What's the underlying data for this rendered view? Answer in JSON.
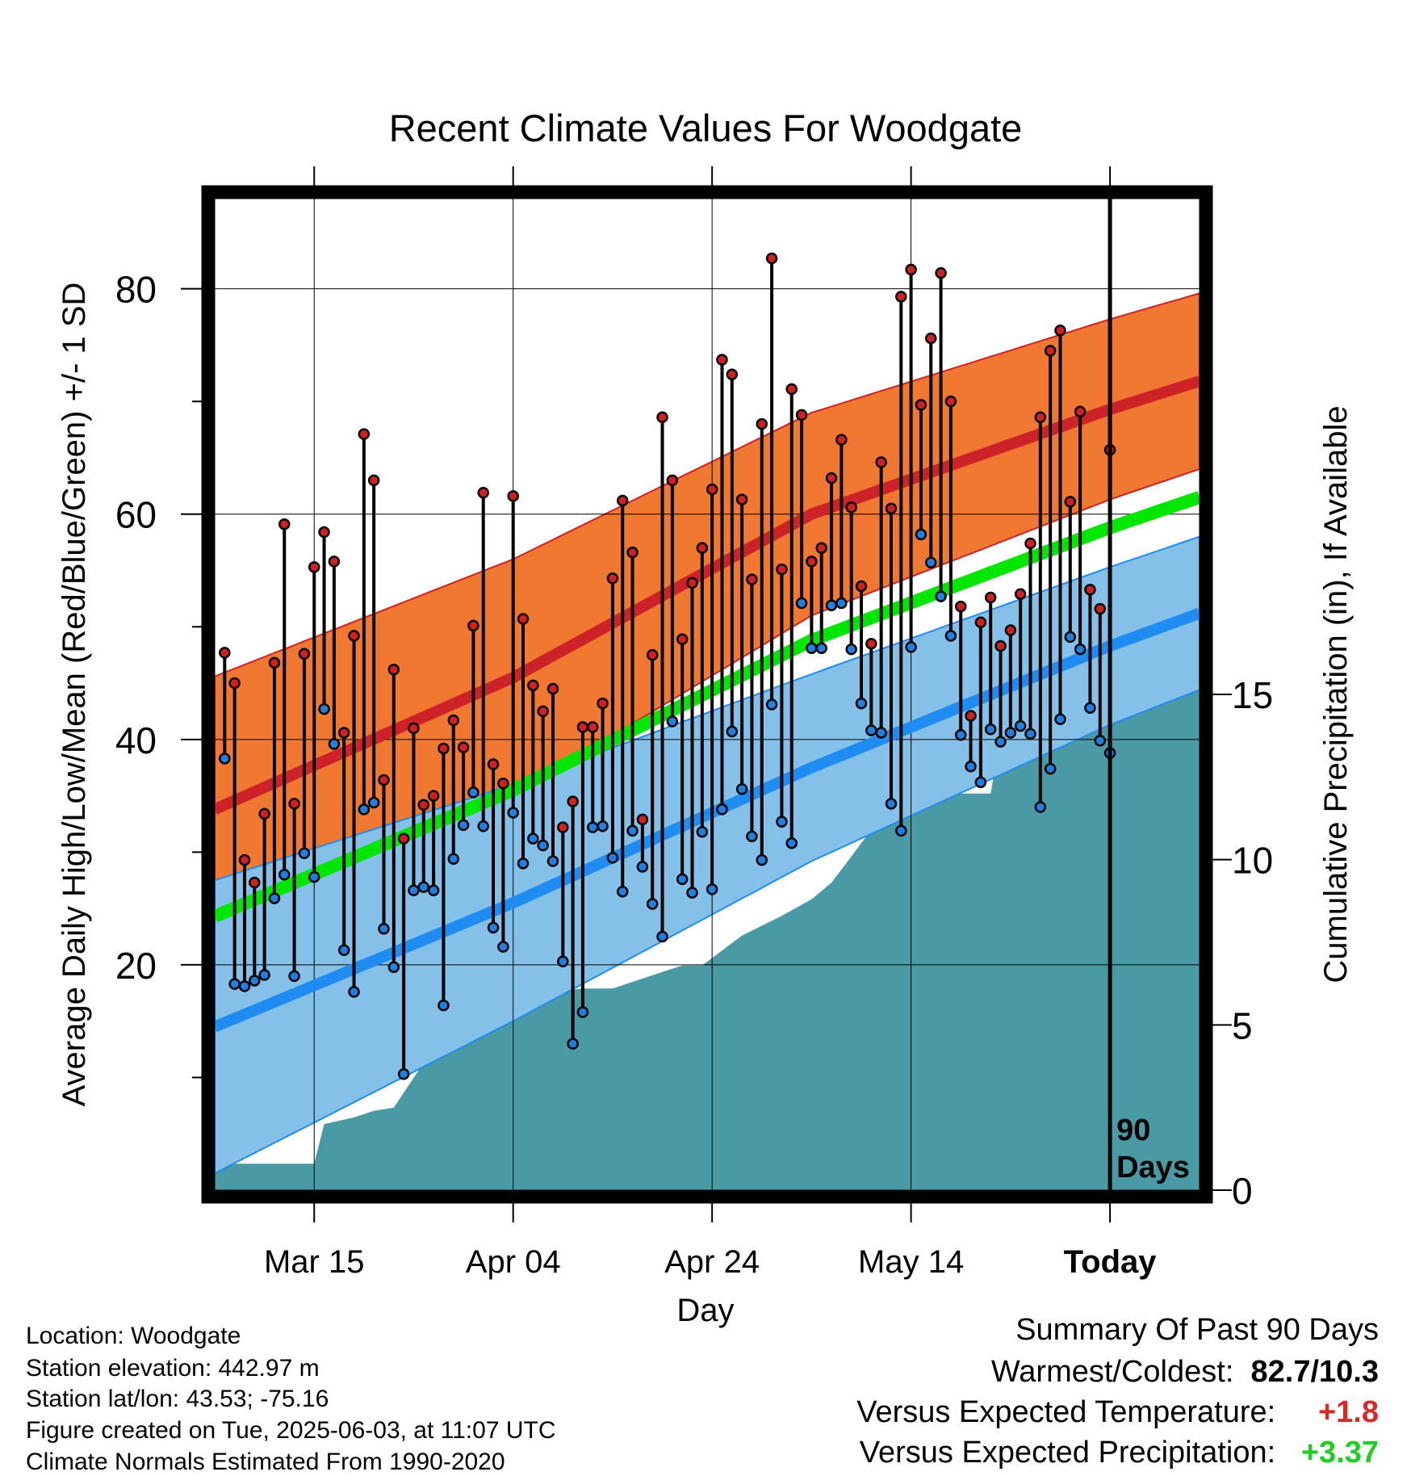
{
  "chart_data": {
    "type": "line",
    "title": "Recent Climate Values For Woodgate",
    "xlabel": "Day",
    "ylabel": "Average Daily High/Low/Mean (Red/Blue/Green) +/- 1 SD",
    "y2label": "Cumulative Precipitation (in), If Available",
    "ylim": [
      0,
      88
    ],
    "y2lim": [
      0,
      30
    ],
    "x_range_days": [
      -90,
      9
    ],
    "x_tick_labels": [
      "Mar 15",
      "Apr 04",
      "Apr 24",
      "May 14",
      "Today"
    ],
    "x_tick_days": [
      -80,
      -60,
      -40,
      -20,
      0
    ],
    "y_ticks": [
      20,
      40,
      60,
      80
    ],
    "y2_ticks": [
      0,
      5,
      10,
      15
    ],
    "today_label": "90\nDays",
    "grid": true,
    "colors": {
      "high_band": "#f07830",
      "high_line": "#cc2228",
      "low_band": "#84c0e8",
      "low_line": "#1e8cf0",
      "mean_line": "#00e600",
      "precip": "#4a9aa5",
      "high_dot": "#d02020",
      "low_dot": "#2080e0"
    },
    "normals": {
      "days": [
        -90,
        -60,
        -30,
        0,
        9
      ],
      "high_mean": [
        33.8,
        45.5,
        60.0,
        69.3,
        71.8
      ],
      "high_sd": [
        11.8,
        10.5,
        9.0,
        8.0,
        7.8
      ],
      "low_mean": [
        14.5,
        25.5,
        37.5,
        48.3,
        51.2
      ],
      "low_sd": [
        13.0,
        10.5,
        8.3,
        7.0,
        6.8
      ],
      "mean": [
        24.3,
        35.5,
        48.8,
        58.8,
        61.5
      ]
    },
    "series": [
      {
        "name": "High",
        "values": [
          47.7,
          45.0,
          29.3,
          27.3,
          33.4,
          46.8,
          59.1,
          34.3,
          47.6,
          55.3,
          58.4,
          55.8,
          40.6,
          49.2,
          67.1,
          63.0,
          36.4,
          46.2,
          31.2,
          41.0,
          34.2,
          35.0,
          39.2,
          41.7,
          39.3,
          50.1,
          61.9,
          37.8,
          36.1,
          61.6,
          50.7,
          44.8,
          42.5,
          44.5,
          32.2,
          34.5,
          41.1,
          41.1,
          43.2,
          54.3,
          61.2,
          56.6,
          32.9,
          47.5,
          68.6,
          63.0,
          48.9,
          53.9,
          57.0,
          62.2,
          73.7,
          72.4,
          61.3,
          54.2,
          68.0,
          82.7,
          55.1,
          71.1,
          68.8,
          55.8,
          57.0,
          63.2,
          66.6,
          60.6,
          53.6,
          48.5,
          64.6,
          60.5,
          79.3,
          81.7,
          69.7,
          75.6,
          81.4,
          70.0,
          51.8,
          42.1,
          50.4,
          52.6,
          48.3,
          49.7,
          52.9,
          57.4,
          68.6,
          74.5,
          76.3,
          61.1,
          69.1,
          53.3,
          51.6,
          65.7
        ]
      },
      {
        "name": "Low",
        "values": [
          38.3,
          18.3,
          18.1,
          18.6,
          19.1,
          25.9,
          28.0,
          19.0,
          29.9,
          27.8,
          42.7,
          39.6,
          21.3,
          17.6,
          33.8,
          34.4,
          23.2,
          19.8,
          10.3,
          26.6,
          26.9,
          26.6,
          16.4,
          29.4,
          32.4,
          35.3,
          32.3,
          23.3,
          21.6,
          33.5,
          29.0,
          31.2,
          30.6,
          29.2,
          20.3,
          13.0,
          15.8,
          32.2,
          32.3,
          29.5,
          26.5,
          31.9,
          28.7,
          25.4,
          22.5,
          41.6,
          27.6,
          26.4,
          31.8,
          26.7,
          33.8,
          40.7,
          35.6,
          31.4,
          29.3,
          43.1,
          32.7,
          30.8,
          52.1,
          48.1,
          48.1,
          51.9,
          52.1,
          48.0,
          43.2,
          40.8,
          40.6,
          34.3,
          31.9,
          48.2,
          58.2,
          55.7,
          52.7,
          49.2,
          40.4,
          37.6,
          36.2,
          40.9,
          39.8,
          40.6,
          41.2,
          40.5,
          34.0,
          37.4,
          41.8,
          49.1,
          48.0,
          42.8,
          39.9,
          38.8
        ]
      },
      {
        "name": "Cumulative Precipitation",
        "days": [
          -90,
          -88,
          -86,
          -80,
          -79,
          -76,
          -74,
          -72,
          -68,
          -66,
          -63,
          -61,
          -59,
          -56,
          -53,
          -50,
          -45,
          -43,
          -41,
          -37,
          -35,
          -33,
          -30,
          -28,
          -26,
          -24,
          -23,
          -21,
          -20,
          -16,
          -12,
          -11,
          -9,
          -8,
          -6,
          -5,
          -3,
          -2,
          0,
          9
        ],
        "values": [
          0.5,
          0.8,
          0.8,
          0.8,
          2.0,
          2.2,
          2.4,
          2.5,
          4.3,
          5.0,
          5.6,
          5.8,
          5.9,
          6.0,
          6.1,
          6.1,
          6.6,
          6.8,
          6.8,
          7.7,
          8.0,
          8.3,
          8.8,
          9.3,
          10.1,
          10.9,
          11.3,
          11.7,
          12.0,
          12.0,
          12.0,
          13.7,
          14.0,
          14.0,
          14.4,
          14.8,
          15.0,
          15.1,
          15.3,
          15.3
        ]
      }
    ]
  },
  "footer": {
    "location": "Location: Woodgate",
    "elevation": "Station elevation: 442.97 m",
    "latlon": "Station lat/lon: 43.53; -75.16",
    "created": "Figure created on Tue, 2025-06-03, at 11:07 UTC",
    "normals": "Climate Normals Estimated From 1990-2020"
  },
  "summary": {
    "title": "Summary Of Past 90 Days",
    "warmest_label": "Warmest/Coldest:",
    "warmest_value": "82.7/10.3",
    "temp_label": "Versus Expected Temperature:",
    "temp_value": "+1.8",
    "temp_color": "#d42a2a",
    "precip_label": "Versus Expected Precipitation:",
    "precip_value": "+3.37",
    "precip_color": "#22cc22"
  }
}
